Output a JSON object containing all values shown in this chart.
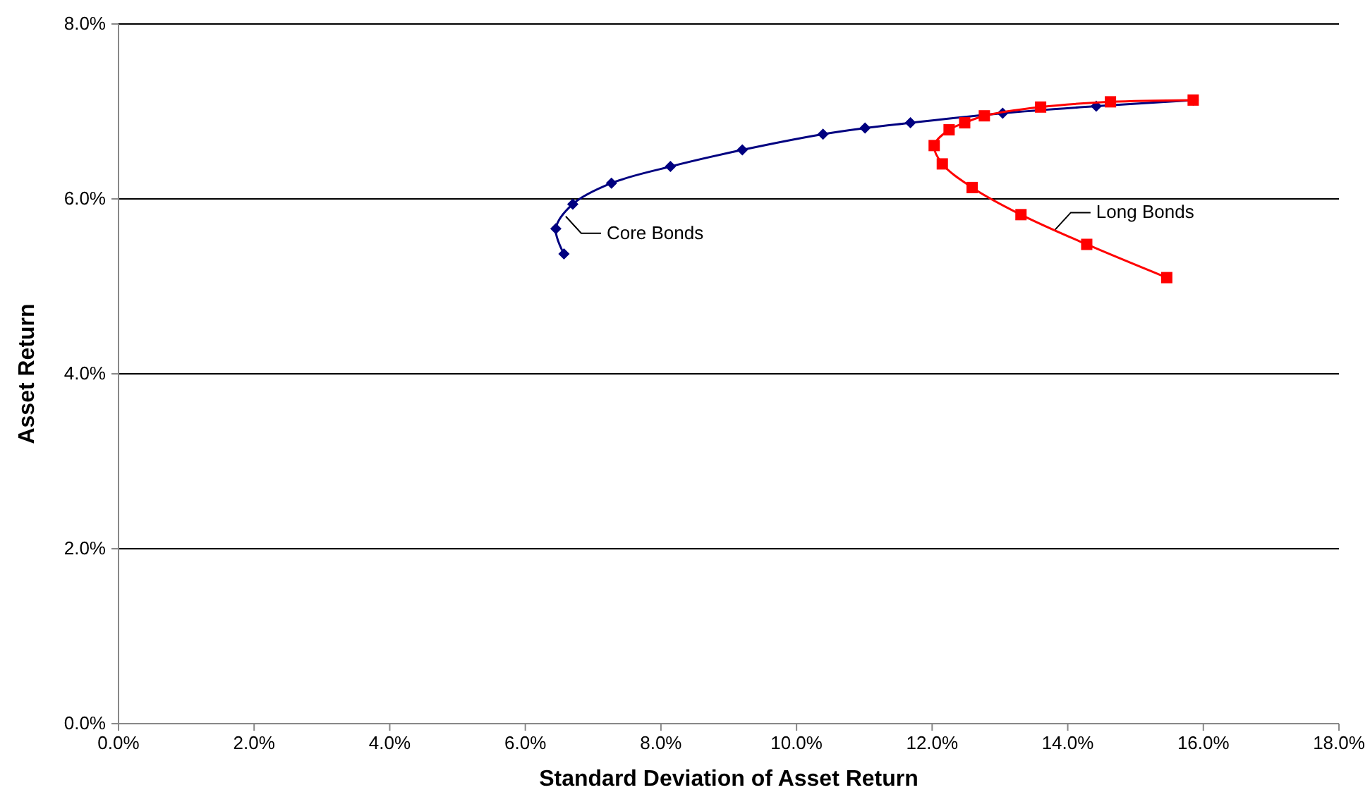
{
  "chart_data": {
    "type": "line",
    "xlabel": "Standard Deviation of Asset Return",
    "ylabel": "Asset Return",
    "xlim": [
      0,
      18
    ],
    "ylim": [
      0,
      8
    ],
    "xticks": [
      {
        "value": 0,
        "label": "0.0%"
      },
      {
        "value": 2,
        "label": "2.0%"
      },
      {
        "value": 4,
        "label": "4.0%"
      },
      {
        "value": 6,
        "label": "6.0%"
      },
      {
        "value": 8,
        "label": "8.0%"
      },
      {
        "value": 10,
        "label": "10.0%"
      },
      {
        "value": 12,
        "label": "12.0%"
      },
      {
        "value": 14,
        "label": "14.0%"
      },
      {
        "value": 16,
        "label": "16.0%"
      },
      {
        "value": 18,
        "label": "18.0%"
      }
    ],
    "yticks": [
      {
        "value": 0,
        "label": "0.0%"
      },
      {
        "value": 2,
        "label": "2.0%"
      },
      {
        "value": 4,
        "label": "4.0%"
      },
      {
        "value": 6,
        "label": "6.0%"
      },
      {
        "value": 8,
        "label": "8.0%"
      }
    ],
    "grid": "y",
    "series": [
      {
        "name": "Core Bonds",
        "color": "#000080",
        "marker": "diamond",
        "x": [
          6.57,
          6.45,
          6.7,
          7.27,
          8.14,
          9.2,
          10.39,
          11.01,
          11.68,
          13.04,
          14.42,
          15.85
        ],
        "values": [
          5.37,
          5.66,
          5.94,
          6.18,
          6.37,
          6.56,
          6.74,
          6.81,
          6.87,
          6.98,
          7.06,
          7.13
        ]
      },
      {
        "name": "Long Bonds",
        "color": "#ff0000",
        "marker": "square",
        "x": [
          15.46,
          14.28,
          13.31,
          12.59,
          12.15,
          12.03,
          12.25,
          12.48,
          12.77,
          13.6,
          14.63,
          15.85
        ],
        "values": [
          5.1,
          5.48,
          5.82,
          6.13,
          6.4,
          6.61,
          6.79,
          6.87,
          6.95,
          7.05,
          7.11,
          7.13
        ]
      }
    ]
  }
}
